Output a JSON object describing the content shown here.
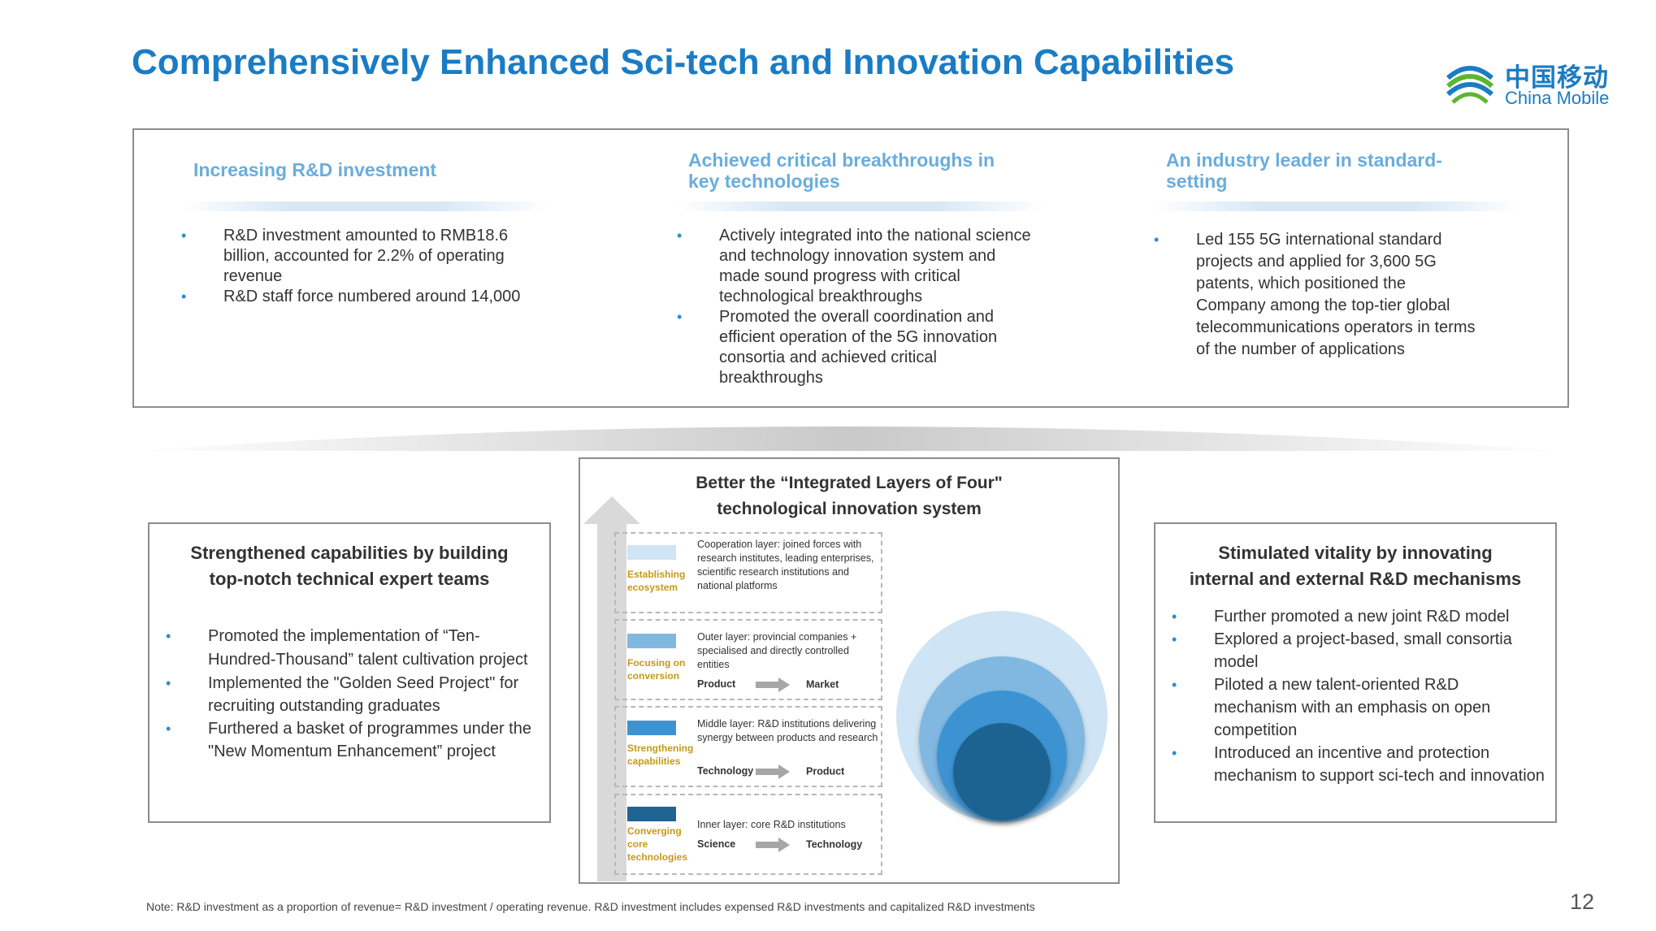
{
  "title": "Comprehensively Enhanced Sci-tech and Innovation Capabilities",
  "logo": {
    "cn": "中国移动",
    "en": "China Mobile",
    "icon": "china-mobile-logo-icon"
  },
  "top_columns": [
    {
      "heading": "Increasing R&D investment",
      "bullets": [
        "R&D investment amounted to RMB18.6 billion, accounted for 2.2% of operating revenue",
        "R&D staff force numbered around 14,000"
      ]
    },
    {
      "heading": "Achieved critical breakthroughs in key technologies",
      "bullets": [
        "Actively integrated into the national science and technology innovation system and made sound progress with critical technological breakthroughs",
        "Promoted the overall coordination and efficient operation of the 5G innovation consortia and achieved critical breakthroughs"
      ]
    },
    {
      "heading": "An industry leader in standard-setting",
      "bullets": [
        "Led 155 5G international standard projects and applied for 3,600 5G patents, which positioned the Company among the top-tier global telecommunications operators in terms of the number of applications"
      ]
    }
  ],
  "left_panel": {
    "title": "Strengthened capabilities by building top-notch technical expert teams",
    "bullets": [
      "Promoted the implementation of “Ten-Hundred-Thousand” talent cultivation project",
      "Implemented the \"Golden Seed Project\" for recruiting outstanding graduates",
      "Furthered a basket of programmes under the \"New Momentum Enhancement” project"
    ]
  },
  "center_panel": {
    "title": "Better the “Integrated Layers of Four\" technological innovation system",
    "layers": [
      {
        "name": "Establishing ecosystem",
        "color": "#cfe4f4",
        "desc": "Cooperation layer: joined forces with research institutes, leading enterprises, scientific research institutions and national platforms",
        "flow_from": "",
        "flow_to": ""
      },
      {
        "name": "Focusing on conversion",
        "color": "#80b8e2",
        "desc": "Outer layer: provincial companies + specialised and directly controlled entities",
        "flow_from": "Product",
        "flow_to": "Market"
      },
      {
        "name": "Strengthening capabilities",
        "color": "#3d93d2",
        "desc": "Middle layer: R&D institutions delivering synergy between products and research",
        "flow_from": "Technology",
        "flow_to": "Product"
      },
      {
        "name": "Converging core technologies",
        "color": "#1f6492",
        "desc": "Inner layer: core R&D institutions",
        "flow_from": "Science",
        "flow_to": "Technology"
      }
    ]
  },
  "right_panel": {
    "title": "Stimulated vitality by innovating internal and external R&D mechanisms",
    "bullets": [
      "Further promoted a new joint R&D model",
      "Explored a project-based, small consortia model",
      "Piloted a new talent-oriented R&D mechanism with an emphasis on open competition",
      "Introduced an incentive and protection mechanism to support sci-tech and innovation"
    ]
  },
  "note": "Note: R&D investment as a proportion of revenue= R&D investment / operating revenue. R&D investment includes expensed R&D investments and capitalized R&D investments",
  "page_number": "12"
}
